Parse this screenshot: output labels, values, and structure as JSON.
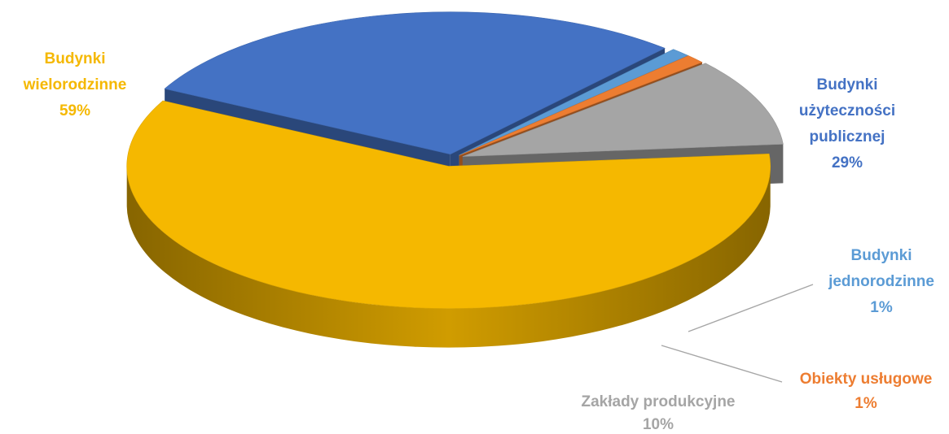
{
  "chart_data": {
    "type": "pie",
    "style": "3d-exploded",
    "title": "",
    "slices": [
      {
        "label_lines": [
          "Budynki",
          "wielorodzinne"
        ],
        "percent_label": "59%",
        "value": 59,
        "color": "#f5b800"
      },
      {
        "label_lines": [
          "Budynki",
          "użyteczności",
          "publicznej"
        ],
        "percent_label": "29%",
        "value": 29,
        "color": "#4472c4"
      },
      {
        "label_lines": [
          "Budynki",
          "jednorodzinne"
        ],
        "percent_label": "1%",
        "value": 1,
        "color": "#5b9bd5"
      },
      {
        "label_lines": [
          "Obiekty usługowe"
        ],
        "percent_label": "1%",
        "value": 1,
        "color": "#ed7d31"
      },
      {
        "label_lines": [
          "Zakłady produkcyjne"
        ],
        "percent_label": "10%",
        "value": 10,
        "color": "#a5a5a5"
      }
    ]
  }
}
